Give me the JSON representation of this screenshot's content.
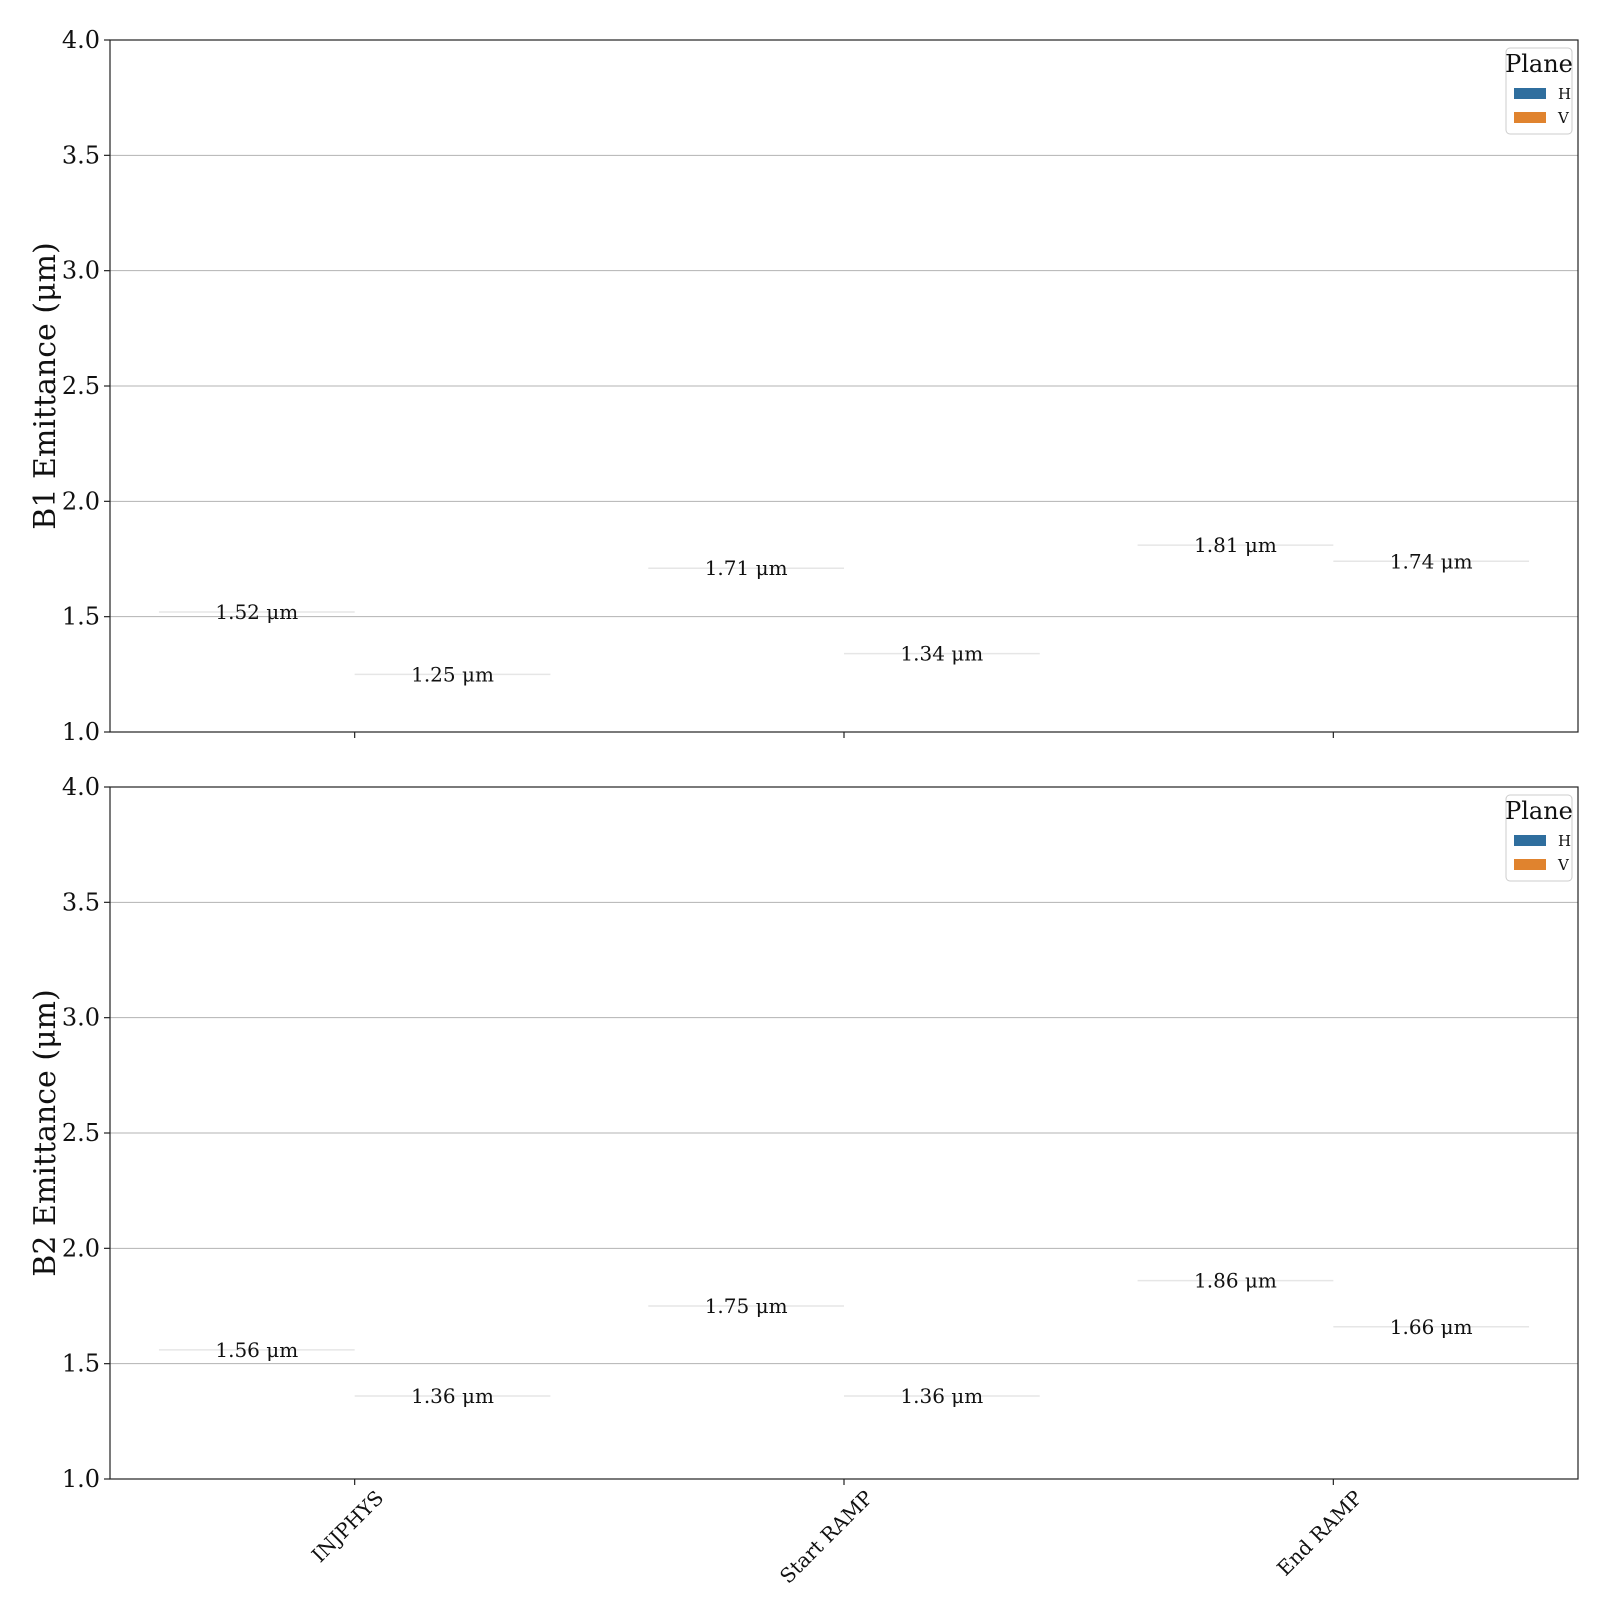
{
  "chart_data": [
    {
      "type": "bar",
      "ylabel": "B1 Emittance (μm)",
      "ylim": [
        1.0,
        4.0
      ],
      "yticks": [
        "1.0",
        "1.5",
        "2.0",
        "2.5",
        "3.0",
        "3.5",
        "4.0"
      ],
      "grid": true,
      "categories": [
        "INJPHYS",
        "Start RAMP",
        "End RAMP"
      ],
      "show_category_labels": false,
      "legend": {
        "title": "Plane",
        "placement": "top-right",
        "entries": [
          "H",
          "V"
        ]
      },
      "series": [
        {
          "name": "H",
          "color": "#2f6e9e",
          "values": [
            1.52,
            1.71,
            1.81
          ],
          "labels": [
            "1.52 μm",
            "1.71 μm",
            "1.81 μm"
          ]
        },
        {
          "name": "V",
          "color": "#e0832e",
          "values": [
            1.25,
            1.34,
            1.74
          ],
          "labels": [
            "1.25 μm",
            "1.34 μm",
            "1.74 μm"
          ]
        }
      ]
    },
    {
      "type": "bar",
      "ylabel": "B2 Emittance (μm)",
      "ylim": [
        1.0,
        4.0
      ],
      "yticks": [
        "1.0",
        "1.5",
        "2.0",
        "2.5",
        "3.0",
        "3.5",
        "4.0"
      ],
      "grid": true,
      "categories": [
        "INJPHYS",
        "Start RAMP",
        "End RAMP"
      ],
      "show_category_labels": true,
      "legend": {
        "title": "Plane",
        "placement": "top-right",
        "entries": [
          "H",
          "V"
        ]
      },
      "series": [
        {
          "name": "H",
          "color": "#2f6e9e",
          "values": [
            1.56,
            1.75,
            1.86
          ],
          "labels": [
            "1.56 μm",
            "1.75 μm",
            "1.86 μm"
          ]
        },
        {
          "name": "V",
          "color": "#e0832e",
          "values": [
            1.36,
            1.36,
            1.66
          ],
          "labels": [
            "1.36 μm",
            "1.36 μm",
            "1.66 μm"
          ]
        }
      ]
    }
  ]
}
